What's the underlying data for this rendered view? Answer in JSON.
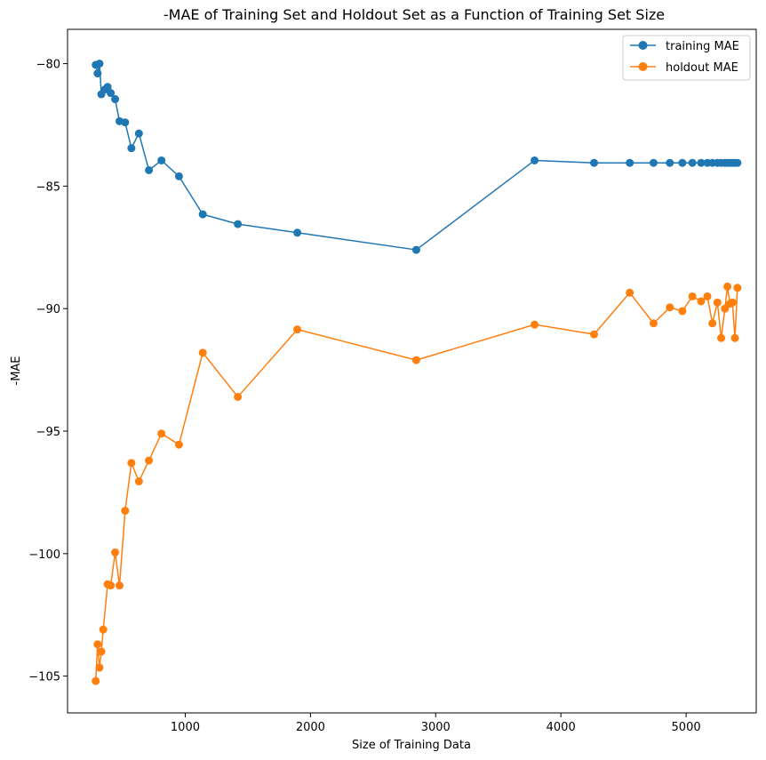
{
  "chart_data": {
    "type": "line",
    "title": "-MAE of Training Set and Holdout Set as a Function of Training Set Size",
    "xlabel": "Size of Training Data",
    "ylabel": "-MAE",
    "xlim": [
      60,
      5560
    ],
    "ylim": [
      -106.5,
      -78.6
    ],
    "x_ticks": [
      1000,
      2000,
      3000,
      4000,
      5000
    ],
    "x_tick_labels": [
      "1000",
      "2000",
      "3000",
      "4000",
      "5000"
    ],
    "y_ticks": [
      -105,
      -100,
      -95,
      -90,
      -85,
      -80
    ],
    "y_tick_labels": [
      "−105",
      "−100",
      "−95",
      "−90",
      "−85",
      "−80"
    ],
    "grid": false,
    "legend": {
      "placement": "top-right"
    },
    "series": [
      {
        "name": "training MAE",
        "color": "#1f77b4",
        "marker": "circle",
        "x": [
          285,
          300,
          315,
          330,
          360,
          380,
          405,
          440,
          475,
          520,
          570,
          630,
          710,
          810,
          950,
          1140,
          1420,
          1895,
          2845,
          3790,
          4265,
          4550,
          4740,
          4870,
          4970,
          5050,
          5120,
          5170,
          5210,
          5250,
          5280,
          5310,
          5330,
          5350,
          5370,
          5390,
          5410
        ],
        "y": [
          -80.05,
          -80.4,
          -80.0,
          -81.25,
          -81.05,
          -80.95,
          -81.2,
          -81.45,
          -82.35,
          -82.4,
          -83.45,
          -82.85,
          -84.35,
          -83.95,
          -84.6,
          -86.15,
          -86.55,
          -86.9,
          -87.6,
          -83.95,
          -84.05,
          -84.05,
          -84.05,
          -84.05,
          -84.05,
          -84.05,
          -84.05,
          -84.05,
          -84.05,
          -84.05,
          -84.05,
          -84.05,
          -84.05,
          -84.05,
          -84.05,
          -84.05,
          -84.05
        ]
      },
      {
        "name": "holdout MAE",
        "color": "#ff7f0e",
        "marker": "circle",
        "x": [
          285,
          300,
          315,
          330,
          345,
          380,
          405,
          440,
          475,
          520,
          570,
          630,
          710,
          810,
          950,
          1140,
          1420,
          1895,
          2845,
          3790,
          4265,
          4550,
          4740,
          4870,
          4970,
          5050,
          5120,
          5170,
          5210,
          5250,
          5280,
          5310,
          5330,
          5350,
          5370,
          5390,
          5410
        ],
        "y": [
          -105.2,
          -103.7,
          -104.65,
          -104.0,
          -103.1,
          -101.25,
          -101.3,
          -99.95,
          -101.3,
          -98.25,
          -96.3,
          -97.05,
          -96.2,
          -95.1,
          -95.55,
          -91.8,
          -93.6,
          -90.85,
          -92.1,
          -90.65,
          -91.05,
          -89.35,
          -90.6,
          -89.95,
          -90.1,
          -89.5,
          -89.7,
          -89.5,
          -90.6,
          -89.75,
          -91.2,
          -90.0,
          -89.1,
          -89.8,
          -89.75,
          -91.2,
          -89.15
        ]
      }
    ]
  }
}
